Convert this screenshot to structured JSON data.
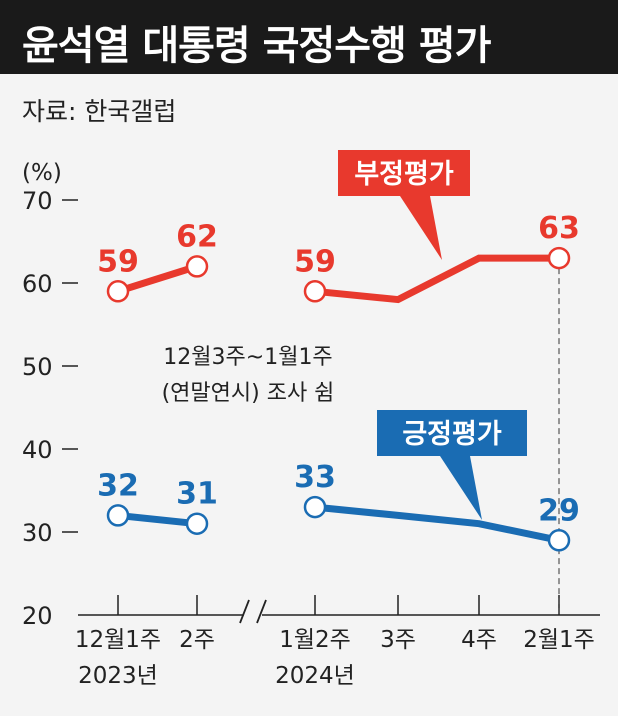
{
  "title": "윤석열 대통령 국정수행 평가",
  "source": "자료: 한국갤럽",
  "colors": {
    "negative": "#e8392d",
    "positive": "#1a6cb3",
    "title_bg": "#1a1a1a",
    "background": "#f4f4f4"
  },
  "chart_data": {
    "type": "line",
    "ylabel": "(%)",
    "ylim": [
      20,
      70
    ],
    "y_ticks": [
      "70",
      "60",
      "50",
      "40",
      "30",
      "20"
    ],
    "categories": [
      "12월1주",
      "2주",
      "1월2주",
      "3주",
      "4주",
      "2월1주"
    ],
    "year_labels": [
      "2023년",
      "2024년"
    ],
    "annotation": [
      "12월3주~1월1주",
      "(연말연시) 조사 쉼"
    ],
    "series": [
      {
        "name": "부정평가",
        "color": "#e8392d",
        "values": [
          59,
          62,
          59,
          58,
          63,
          63
        ],
        "labels": [
          "59",
          "62",
          "59",
          "",
          "",
          "63"
        ]
      },
      {
        "name": "긍정평가",
        "color": "#1a6cb3",
        "values": [
          32,
          31,
          33,
          32,
          31,
          29
        ],
        "labels": [
          "32",
          "31",
          "33",
          "",
          "",
          "29"
        ]
      }
    ]
  }
}
